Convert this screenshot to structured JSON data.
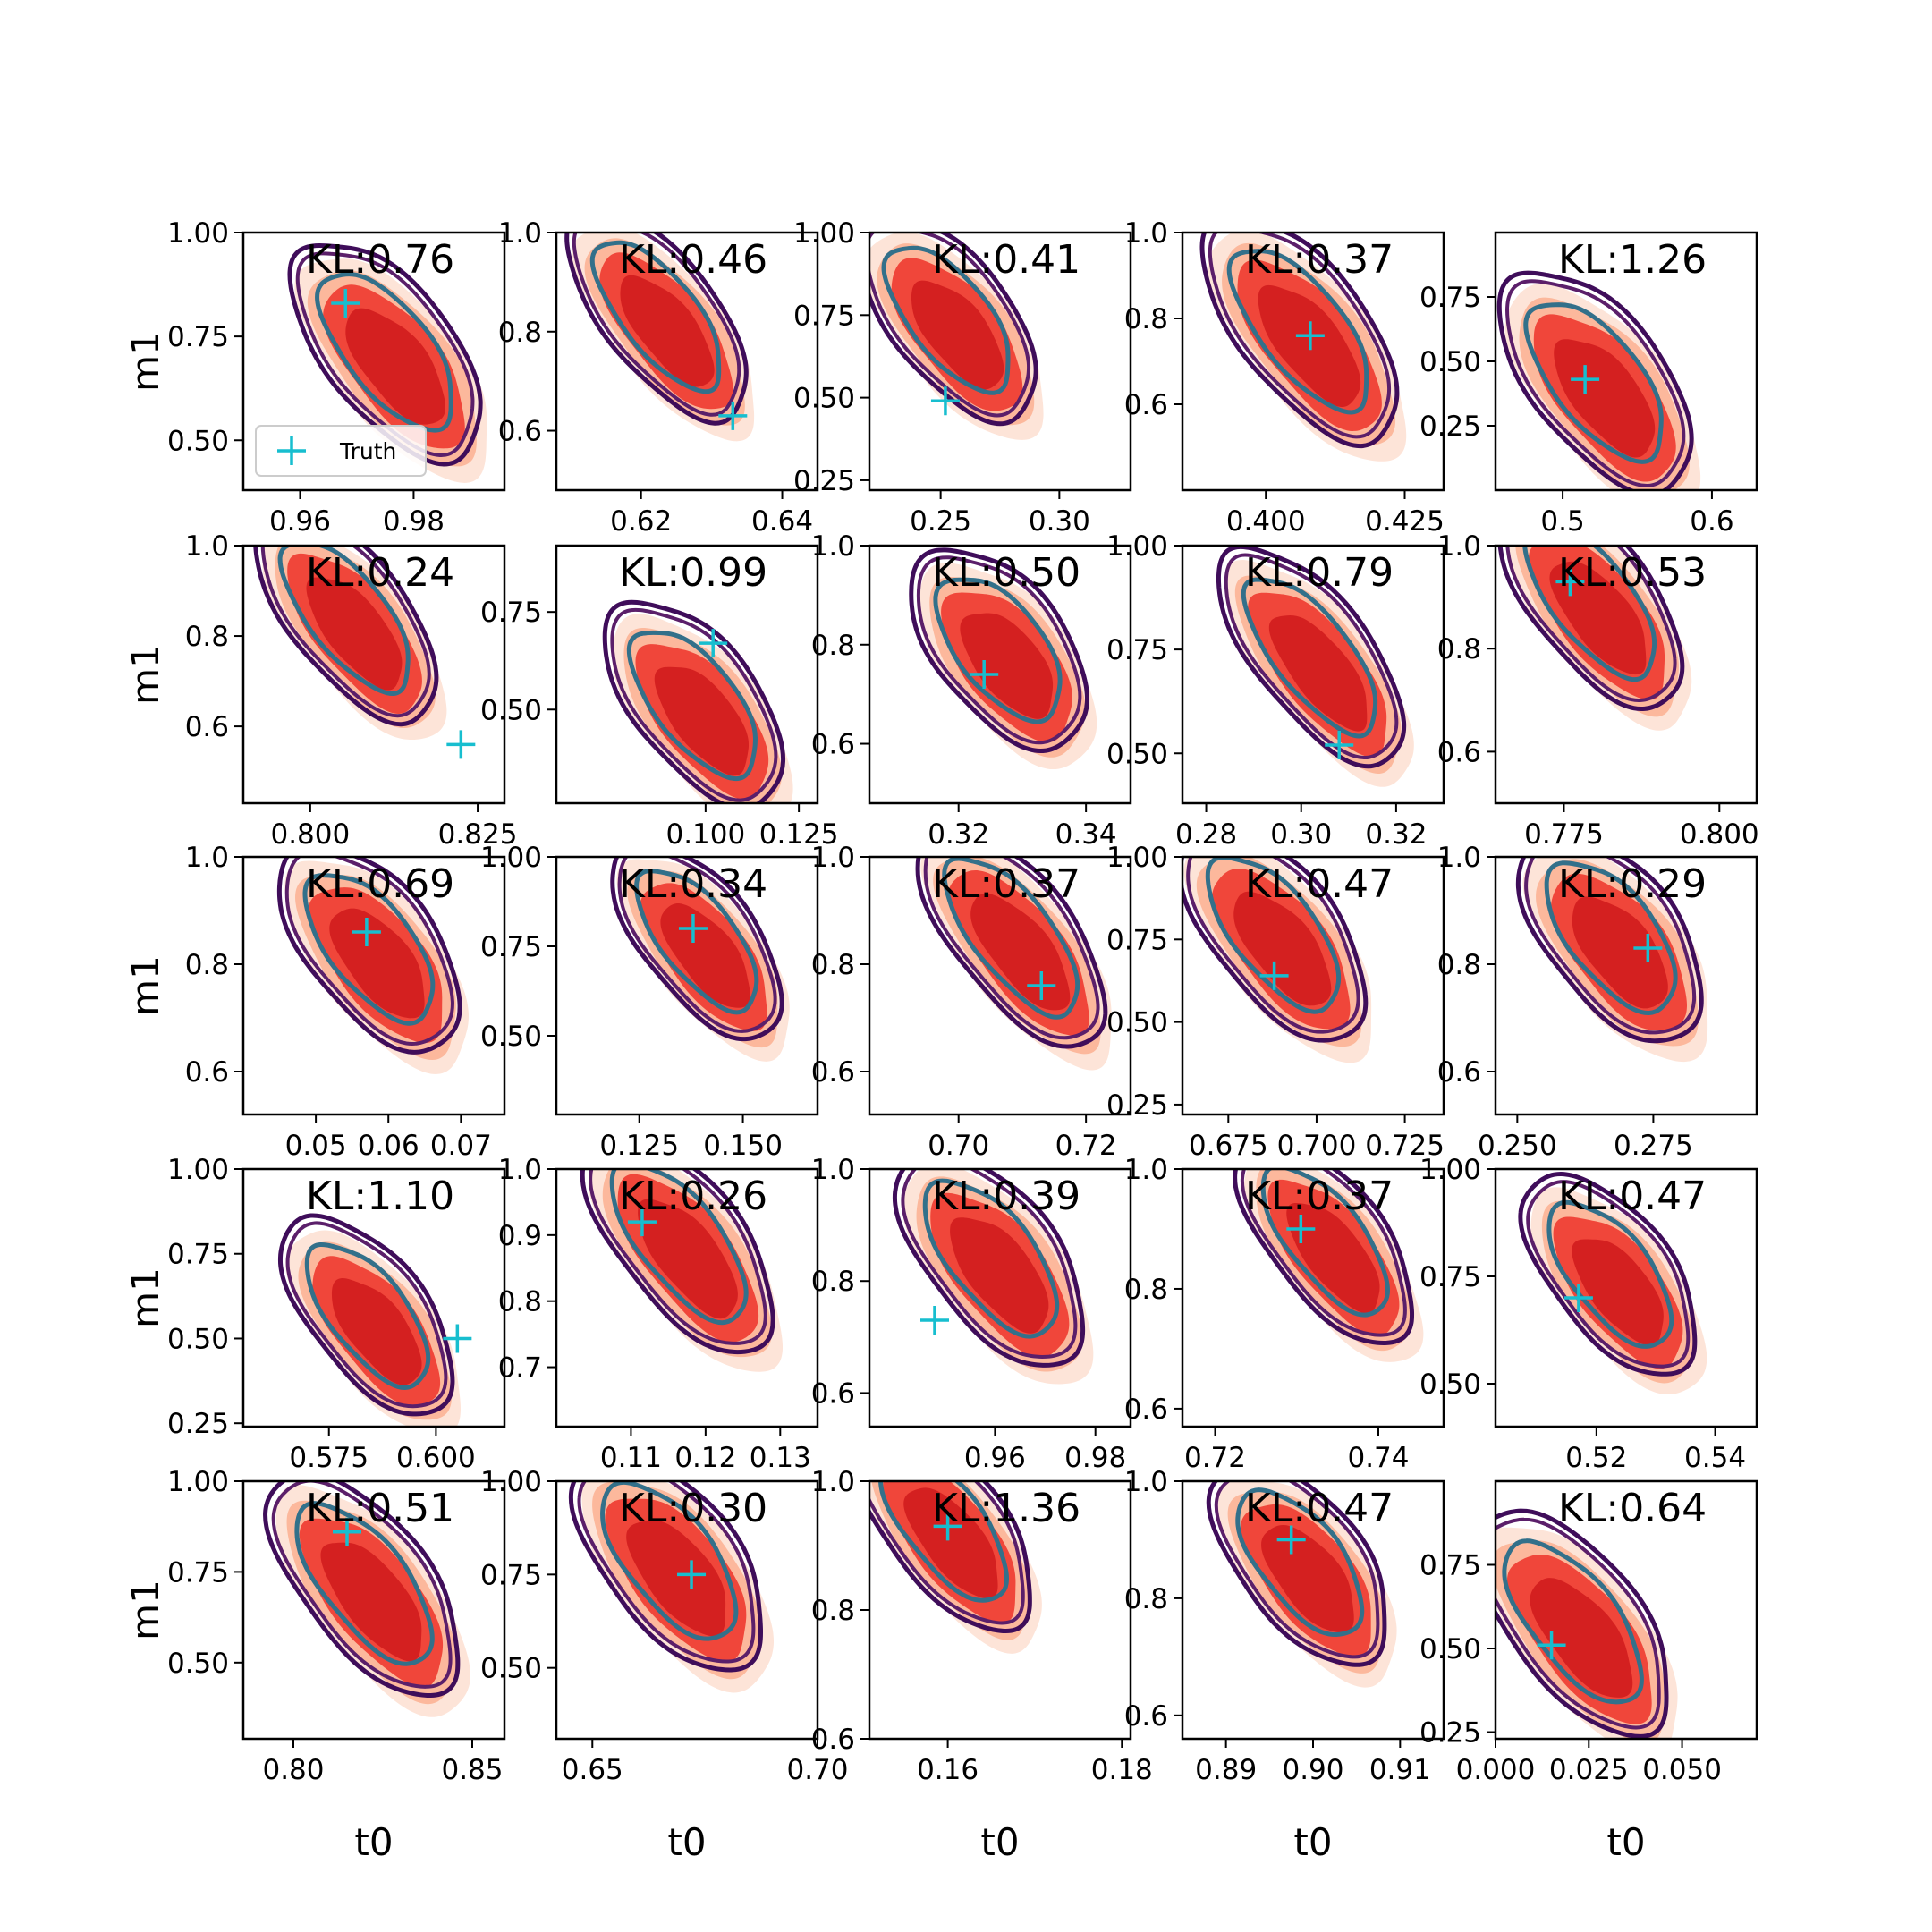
{
  "colors": {
    "truth_marker": "#17becf",
    "fill_levels": [
      "#fde4d8",
      "#fcb89c",
      "#f0463a",
      "#d42020"
    ],
    "line_outer": "#3f0d5a",
    "line_mid": "#5b1f6a",
    "line_inner": "#33708a"
  },
  "legend": {
    "label": "Truth",
    "panel": 0
  },
  "chart_data": [
    {
      "type": "contour",
      "row": 0,
      "col": 0,
      "kl_label": "KL:0.76",
      "xlabel": "",
      "ylabel": "m1",
      "xlim": [
        0.95,
        0.996
      ],
      "ylim": [
        0.38,
        1.0
      ],
      "xticks": [
        0.96,
        0.98
      ],
      "xtick_labels": [
        "0.96",
        "0.98"
      ],
      "yticks": [
        0.5,
        0.75,
        1.0
      ],
      "ytick_labels": [
        "0.50",
        "0.75",
        "1.00"
      ],
      "truth": [
        0.968,
        0.83
      ],
      "contour_center": [
        0.976,
        0.7
      ],
      "show_legend": true
    },
    {
      "type": "contour",
      "row": 0,
      "col": 1,
      "kl_label": "KL:0.46",
      "xlabel": "",
      "ylabel": "",
      "xlim": [
        0.608,
        0.645
      ],
      "ylim": [
        0.48,
        1.0
      ],
      "xticks": [
        0.62,
        0.64
      ],
      "xtick_labels": [
        "0.62",
        "0.64"
      ],
      "yticks": [
        0.6,
        0.8,
        1.0
      ],
      "ytick_labels": [
        "0.6",
        "0.8",
        "1.0"
      ],
      "truth": [
        0.633,
        0.63
      ],
      "contour_center": [
        0.623,
        0.82
      ]
    },
    {
      "type": "contour",
      "row": 0,
      "col": 2,
      "kl_label": "KL:0.41",
      "xlabel": "",
      "ylabel": "",
      "xlim": [
        0.22,
        0.33
      ],
      "ylim": [
        0.22,
        1.0
      ],
      "xticks": [
        0.25,
        0.3
      ],
      "xtick_labels": [
        "0.25",
        "0.30"
      ],
      "yticks": [
        0.25,
        0.5,
        0.75,
        1.0
      ],
      "ytick_labels": [
        "0.25",
        "0.50",
        "0.75",
        "1.00"
      ],
      "truth": [
        0.252,
        0.49
      ],
      "contour_center": [
        0.255,
        0.72
      ]
    },
    {
      "type": "contour",
      "row": 0,
      "col": 3,
      "kl_label": "KL:0.37",
      "xlabel": "",
      "ylabel": "",
      "xlim": [
        0.385,
        0.432
      ],
      "ylim": [
        0.4,
        1.0
      ],
      "xticks": [
        0.4,
        0.425
      ],
      "xtick_labels": [
        "0.400",
        "0.425"
      ],
      "yticks": [
        0.6,
        0.8,
        1.0
      ],
      "ytick_labels": [
        "0.6",
        "0.8",
        "1.0"
      ],
      "truth": [
        0.408,
        0.76
      ],
      "contour_center": [
        0.407,
        0.76
      ]
    },
    {
      "type": "contour",
      "row": 0,
      "col": 4,
      "kl_label": "KL:1.26",
      "xlabel": "",
      "ylabel": "",
      "xlim": [
        0.455,
        0.63
      ],
      "ylim": [
        0.0,
        1.0
      ],
      "xticks": [
        0.5,
        0.6
      ],
      "xtick_labels": [
        "0.5",
        "0.6"
      ],
      "yticks": [
        0.25,
        0.5,
        0.75
      ],
      "ytick_labels": [
        "0.25",
        "0.50",
        "0.75"
      ],
      "truth": [
        0.515,
        0.43
      ],
      "contour_center": [
        0.525,
        0.4
      ]
    },
    {
      "type": "contour",
      "row": 1,
      "col": 0,
      "kl_label": "KL:0.24",
      "xlabel": "",
      "ylabel": "m1",
      "xlim": [
        0.79,
        0.829
      ],
      "ylim": [
        0.43,
        1.0
      ],
      "xticks": [
        0.8,
        0.825
      ],
      "xtick_labels": [
        "0.800",
        "0.825"
      ],
      "yticks": [
        0.6,
        0.8,
        1.0
      ],
      "ytick_labels": [
        "0.6",
        "0.8",
        "1.0"
      ],
      "truth": [
        0.8225,
        0.56
      ],
      "contour_center": [
        0.806,
        0.83
      ]
    },
    {
      "type": "contour",
      "row": 1,
      "col": 1,
      "kl_label": "KL:0.99",
      "xlabel": "",
      "ylabel": "",
      "xlim": [
        0.06,
        0.13
      ],
      "ylim": [
        0.26,
        0.92
      ],
      "xticks": [
        0.1,
        0.125
      ],
      "xtick_labels": [
        "0.100",
        "0.125"
      ],
      "yticks": [
        0.5,
        0.75
      ],
      "ytick_labels": [
        "0.50",
        "0.75"
      ],
      "truth": [
        0.102,
        0.67
      ],
      "contour_center": [
        0.098,
        0.5
      ]
    },
    {
      "type": "contour",
      "row": 1,
      "col": 2,
      "kl_label": "KL:0.50",
      "xlabel": "",
      "ylabel": "",
      "xlim": [
        0.306,
        0.347
      ],
      "ylim": [
        0.48,
        1.0
      ],
      "xticks": [
        0.32,
        0.34
      ],
      "xtick_labels": [
        "0.32",
        "0.34"
      ],
      "yticks": [
        0.6,
        0.8,
        1.0
      ],
      "ytick_labels": [
        "0.6",
        "0.8",
        "1.0"
      ],
      "truth": [
        0.324,
        0.74
      ],
      "contour_center": [
        0.327,
        0.78
      ]
    },
    {
      "type": "contour",
      "row": 1,
      "col": 3,
      "kl_label": "KL:0.79",
      "xlabel": "",
      "ylabel": "",
      "xlim": [
        0.275,
        0.33
      ],
      "ylim": [
        0.38,
        1.0
      ],
      "xticks": [
        0.28,
        0.3,
        0.32
      ],
      "xtick_labels": [
        "0.28",
        "0.30",
        "0.32"
      ],
      "yticks": [
        0.5,
        0.75,
        1.0
      ],
      "ytick_labels": [
        "0.50",
        "0.75",
        "1.00"
      ],
      "truth": [
        0.308,
        0.52
      ],
      "contour_center": [
        0.303,
        0.72
      ]
    },
    {
      "type": "contour",
      "row": 1,
      "col": 4,
      "kl_label": "KL:0.53",
      "xlabel": "",
      "ylabel": "",
      "xlim": [
        0.764,
        0.806
      ],
      "ylim": [
        0.5,
        1.0
      ],
      "xticks": [
        0.775,
        0.8
      ],
      "xtick_labels": [
        "0.775",
        "0.800"
      ],
      "yticks": [
        0.6,
        0.8,
        1.0
      ],
      "ytick_labels": [
        "0.6",
        "0.8",
        "1.0"
      ],
      "truth": [
        0.776,
        0.93
      ],
      "contour_center": [
        0.78,
        0.88
      ]
    },
    {
      "type": "contour",
      "row": 2,
      "col": 0,
      "kl_label": "KL:0.69",
      "xlabel": "",
      "ylabel": "m1",
      "xlim": [
        0.04,
        0.076
      ],
      "ylim": [
        0.52,
        1.0
      ],
      "xticks": [
        0.05,
        0.06,
        0.07
      ],
      "xtick_labels": [
        "0.05",
        "0.06",
        "0.07"
      ],
      "yticks": [
        0.6,
        0.8,
        1.0
      ],
      "ytick_labels": [
        "0.6",
        "0.8",
        "1.0"
      ],
      "truth": [
        0.057,
        0.86
      ],
      "contour_center": [
        0.058,
        0.82
      ]
    },
    {
      "type": "contour",
      "row": 2,
      "col": 1,
      "kl_label": "KL:0.34",
      "xlabel": "",
      "ylabel": "",
      "xlim": [
        0.105,
        0.168
      ],
      "ylim": [
        0.28,
        1.0
      ],
      "xticks": [
        0.125,
        0.15
      ],
      "xtick_labels": [
        "0.125",
        "0.150"
      ],
      "yticks": [
        0.5,
        0.75,
        1.0
      ],
      "ytick_labels": [
        "0.50",
        "0.75",
        "1.00"
      ],
      "truth": [
        0.138,
        0.8
      ],
      "contour_center": [
        0.14,
        0.75
      ]
    },
    {
      "type": "contour",
      "row": 2,
      "col": 2,
      "kl_label": "KL:0.37",
      "xlabel": "",
      "ylabel": "",
      "xlim": [
        0.686,
        0.727
      ],
      "ylim": [
        0.52,
        1.0
      ],
      "xticks": [
        0.7,
        0.72
      ],
      "xtick_labels": [
        "0.70",
        "0.72"
      ],
      "yticks": [
        0.6,
        0.8,
        1.0
      ],
      "ytick_labels": [
        "0.6",
        "0.8",
        "1.0"
      ],
      "truth": [
        0.713,
        0.76
      ],
      "contour_center": [
        0.709,
        0.84
      ]
    },
    {
      "type": "contour",
      "row": 2,
      "col": 3,
      "kl_label": "KL:0.47",
      "xlabel": "",
      "ylabel": "",
      "xlim": [
        0.662,
        0.736
      ],
      "ylim": [
        0.22,
        1.0
      ],
      "xticks": [
        0.675,
        0.7,
        0.725
      ],
      "xtick_labels": [
        "0.675",
        "0.700",
        "0.725"
      ],
      "yticks": [
        0.25,
        0.5,
        0.75,
        1.0
      ],
      "ytick_labels": [
        "0.25",
        "0.50",
        "0.75",
        "1.00"
      ],
      "truth": [
        0.688,
        0.64
      ],
      "contour_center": [
        0.689,
        0.75
      ]
    },
    {
      "type": "contour",
      "row": 2,
      "col": 4,
      "kl_label": "KL:0.29",
      "xlabel": "",
      "ylabel": "",
      "xlim": [
        0.246,
        0.294
      ],
      "ylim": [
        0.52,
        1.0
      ],
      "xticks": [
        0.25,
        0.275
      ],
      "xtick_labels": [
        "0.250",
        "0.275"
      ],
      "yticks": [
        0.6,
        0.8,
        1.0
      ],
      "ytick_labels": [
        "0.6",
        "0.8",
        "1.0"
      ],
      "truth": [
        0.274,
        0.83
      ],
      "contour_center": [
        0.268,
        0.84
      ]
    },
    {
      "type": "contour",
      "row": 3,
      "col": 0,
      "kl_label": "KL:1.10",
      "xlabel": "",
      "ylabel": "m1",
      "xlim": [
        0.555,
        0.616
      ],
      "ylim": [
        0.24,
        1.0
      ],
      "xticks": [
        0.575,
        0.6
      ],
      "xtick_labels": [
        "0.575",
        "0.600"
      ],
      "yticks": [
        0.25,
        0.5,
        0.75,
        1.0
      ],
      "ytick_labels": [
        "0.25",
        "0.50",
        "0.75",
        "1.00"
      ],
      "truth": [
        0.605,
        0.5
      ],
      "contour_center": [
        0.585,
        0.55
      ]
    },
    {
      "type": "contour",
      "row": 3,
      "col": 1,
      "kl_label": "KL:0.26",
      "xlabel": "",
      "ylabel": "",
      "xlim": [
        0.1,
        0.135
      ],
      "ylim": [
        0.61,
        1.0
      ],
      "xticks": [
        0.11,
        0.12,
        0.13
      ],
      "xtick_labels": [
        "0.11",
        "0.12",
        "0.13"
      ],
      "yticks": [
        0.7,
        0.8,
        0.9,
        1.0
      ],
      "ytick_labels": [
        "0.7",
        "0.8",
        "0.9",
        "1.0"
      ],
      "truth": [
        0.1115,
        0.92
      ],
      "contour_center": [
        0.117,
        0.88
      ]
    },
    {
      "type": "contour",
      "row": 3,
      "col": 2,
      "kl_label": "KL:0.39",
      "xlabel": "",
      "ylabel": "",
      "xlim": [
        0.935,
        0.987
      ],
      "ylim": [
        0.54,
        1.0
      ],
      "xticks": [
        0.96,
        0.98
      ],
      "xtick_labels": [
        "0.96",
        "0.98"
      ],
      "yticks": [
        0.6,
        0.8,
        1.0
      ],
      "ytick_labels": [
        "0.6",
        "0.8",
        "1.0"
      ],
      "truth": [
        0.948,
        0.73
      ],
      "contour_center": [
        0.96,
        0.83
      ]
    },
    {
      "type": "contour",
      "row": 3,
      "col": 3,
      "kl_label": "KL:0.37",
      "xlabel": "",
      "ylabel": "",
      "xlim": [
        0.716,
        0.748
      ],
      "ylim": [
        0.57,
        1.0
      ],
      "xticks": [
        0.72,
        0.74
      ],
      "xtick_labels": [
        "0.72",
        "0.74"
      ],
      "yticks": [
        0.6,
        0.8,
        1.0
      ],
      "ytick_labels": [
        "0.6",
        "0.8",
        "1.0"
      ],
      "truth": [
        0.7305,
        0.9
      ],
      "contour_center": [
        0.734,
        0.87
      ]
    },
    {
      "type": "contour",
      "row": 3,
      "col": 4,
      "kl_label": "KL:0.47",
      "xlabel": "",
      "ylabel": "",
      "xlim": [
        0.503,
        0.547
      ],
      "ylim": [
        0.4,
        1.0
      ],
      "xticks": [
        0.52,
        0.54
      ],
      "xtick_labels": [
        "0.52",
        "0.54"
      ],
      "yticks": [
        0.5,
        0.75,
        1.0
      ],
      "ytick_labels": [
        "0.50",
        "0.75",
        "1.00"
      ],
      "truth": [
        0.517,
        0.7
      ],
      "contour_center": [
        0.523,
        0.74
      ]
    },
    {
      "type": "contour",
      "row": 4,
      "col": 0,
      "kl_label": "KL:0.51",
      "xlabel": "t0",
      "ylabel": "m1",
      "xlim": [
        0.786,
        0.859
      ],
      "ylim": [
        0.29,
        1.0
      ],
      "xticks": [
        0.8,
        0.85
      ],
      "xtick_labels": [
        "0.80",
        "0.85"
      ],
      "yticks": [
        0.5,
        0.75,
        1.0
      ],
      "ytick_labels": [
        "0.50",
        "0.75",
        "1.00"
      ],
      "truth": [
        0.815,
        0.86
      ],
      "contour_center": [
        0.821,
        0.7
      ]
    },
    {
      "type": "contour",
      "row": 4,
      "col": 1,
      "kl_label": "KL:0.30",
      "xlabel": "t0",
      "ylabel": "",
      "xlim": [
        0.642,
        0.7
      ],
      "ylim": [
        0.31,
        1.0
      ],
      "xticks": [
        0.65,
        0.7
      ],
      "xtick_labels": [
        "0.65",
        "0.70"
      ],
      "yticks": [
        0.5,
        0.75,
        1.0
      ],
      "ytick_labels": [
        "0.50",
        "0.75",
        "1.00"
      ],
      "truth": [
        0.672,
        0.75
      ],
      "contour_center": [
        0.668,
        0.77
      ]
    },
    {
      "type": "contour",
      "row": 4,
      "col": 2,
      "kl_label": "KL:1.36",
      "xlabel": "t0",
      "ylabel": "",
      "xlim": [
        0.151,
        0.181
      ],
      "ylim": [
        0.6,
        1.0
      ],
      "xticks": [
        0.16,
        0.18
      ],
      "xtick_labels": [
        "0.16",
        "0.18"
      ],
      "yticks": [
        0.6,
        0.8,
        1.0
      ],
      "ytick_labels": [
        "0.6",
        "0.8",
        "1.0"
      ],
      "truth": [
        0.16,
        0.93
      ],
      "contour_center": [
        0.16,
        0.92
      ]
    },
    {
      "type": "contour",
      "row": 4,
      "col": 3,
      "kl_label": "KL:0.47",
      "xlabel": "t0",
      "ylabel": "",
      "xlim": [
        0.885,
        0.915
      ],
      "ylim": [
        0.56,
        1.0
      ],
      "xticks": [
        0.89,
        0.9,
        0.91
      ],
      "xtick_labels": [
        "0.89",
        "0.90",
        "0.91"
      ],
      "yticks": [
        0.6,
        0.8,
        1.0
      ],
      "ytick_labels": [
        "0.6",
        "0.8",
        "1.0"
      ],
      "truth": [
        0.8975,
        0.9
      ],
      "contour_center": [
        0.899,
        0.85
      ]
    },
    {
      "type": "contour",
      "row": 4,
      "col": 4,
      "kl_label": "KL:0.64",
      "xlabel": "t0",
      "ylabel": "",
      "xlim": [
        0.0,
        0.07
      ],
      "ylim": [
        0.23,
        1.0
      ],
      "xticks": [
        0.0,
        0.025,
        0.05
      ],
      "xtick_labels": [
        "0.000",
        "0.025",
        "0.050"
      ],
      "yticks": [
        0.25,
        0.5,
        0.75
      ],
      "ytick_labels": [
        "0.25",
        "0.50",
        "0.75"
      ],
      "truth": [
        0.015,
        0.51
      ],
      "contour_center": [
        0.022,
        0.56
      ]
    }
  ]
}
